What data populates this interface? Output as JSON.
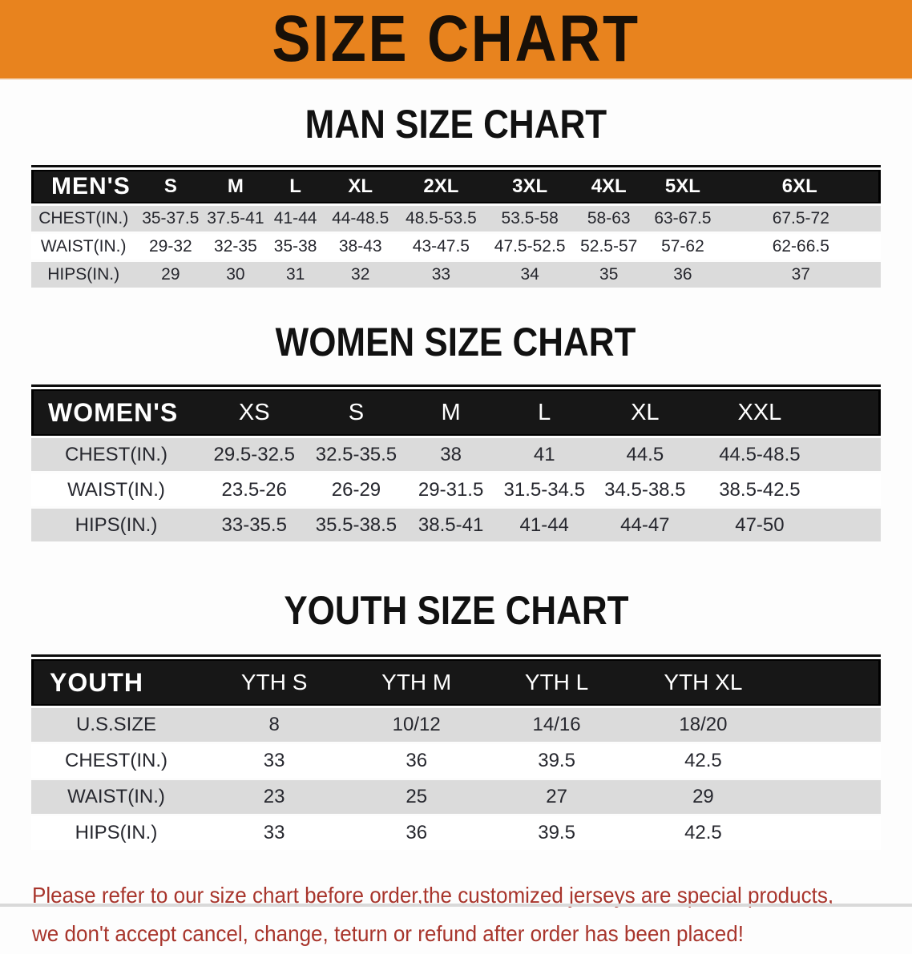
{
  "banner": {
    "title": "SIZE CHART",
    "bg_color": "#E8831E",
    "text_color": "#181008"
  },
  "sections": {
    "men": {
      "title": "MAN SIZE CHART",
      "table": {
        "label": "MEN'S",
        "columns": [
          "S",
          "M",
          "L",
          "XL",
          "2XL",
          "3XL",
          "4XL",
          "5XL",
          "6XL"
        ],
        "rows": [
          {
            "label": "CHEST(IN.)",
            "values": [
              "35-37.5",
              "37.5-41",
              "41-44",
              "44-48.5",
              "48.5-53.5",
              "53.5-58",
              "58-63",
              "63-67.5",
              "67.5-72"
            ]
          },
          {
            "label": "WAIST(IN.)",
            "values": [
              "29-32",
              "32-35",
              "35-38",
              "38-43",
              "43-47.5",
              "47.5-52.5",
              "52.5-57",
              "57-62",
              "62-66.5"
            ]
          },
          {
            "label": "HIPS(IN.)",
            "values": [
              "29",
              "30",
              "31",
              "32",
              "33",
              "34",
              "35",
              "36",
              "37"
            ]
          }
        ]
      }
    },
    "women": {
      "title": "WOMEN SIZE CHART",
      "table": {
        "label": "WOMEN'S",
        "columns": [
          "XS",
          "S",
          "M",
          "L",
          "XL",
          "XXL"
        ],
        "rows": [
          {
            "label": "CHEST(IN.)",
            "values": [
              "29.5-32.5",
              "32.5-35.5",
              "38",
              "41",
              "44.5",
              "44.5-48.5"
            ]
          },
          {
            "label": "WAIST(IN.)",
            "values": [
              "23.5-26",
              "26-29",
              "29-31.5",
              "31.5-34.5",
              "34.5-38.5",
              "38.5-42.5"
            ]
          },
          {
            "label": "HIPS(IN.)",
            "values": [
              "33-35.5",
              "35.5-38.5",
              "38.5-41",
              "41-44",
              "44-47",
              "47-50"
            ]
          }
        ]
      }
    },
    "youth": {
      "title": "YOUTH SIZE CHART",
      "table": {
        "label": "YOUTH",
        "columns": [
          "YTH S",
          "YTH M",
          "YTH L",
          "YTH XL"
        ],
        "rows": [
          {
            "label": "U.S.SIZE",
            "values": [
              "8",
              "10/12",
              "14/16",
              "18/20"
            ]
          },
          {
            "label": "CHEST(IN.)",
            "values": [
              "33",
              "36",
              "39.5",
              "42.5"
            ]
          },
          {
            "label": "WAIST(IN.)",
            "values": [
              "23",
              "25",
              "27",
              "29"
            ]
          },
          {
            "label": "HIPS(IN.)",
            "values": [
              "33",
              "36",
              "39.5",
              "42.5"
            ]
          }
        ]
      }
    }
  },
  "footer": {
    "line1": "Please refer to our size chart before order,the customized jerseys are special products,",
    "line2": "we don't accept cancel, change, teturn or refund after order has been placed!",
    "text_color": "#A8352C"
  }
}
